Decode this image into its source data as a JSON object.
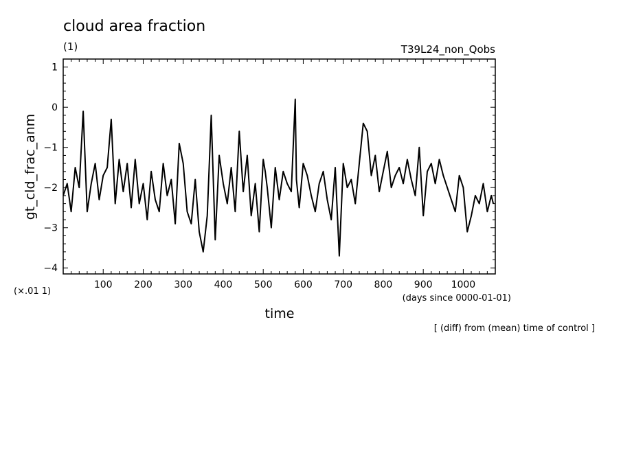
{
  "chart_data": {
    "type": "line",
    "title": "cloud area fraction",
    "subtitle_left": "(1)",
    "subtitle_right": "T39L24_non_Qobs",
    "ylabel": "gt_cld_frac_anm",
    "xlabel": "time",
    "xunits": "(days since 0000-01-01)",
    "yscale_note": "(×.01 1)",
    "footnote": "[ (diff) from (mean) time of control ]",
    "xlim": [
      0,
      1080
    ],
    "ylim": [
      -4.15,
      1.2
    ],
    "xticks": [
      100,
      200,
      300,
      400,
      500,
      600,
      700,
      800,
      900,
      1000
    ],
    "yticks": [
      1,
      0,
      -1,
      -2,
      -3,
      -4
    ],
    "grid": false,
    "series": [
      {
        "color": "#000000",
        "x": [
          0,
          10,
          20,
          30,
          40,
          50,
          60,
          70,
          80,
          90,
          100,
          110,
          120,
          130,
          140,
          150,
          160,
          170,
          180,
          190,
          200,
          210,
          220,
          230,
          240,
          250,
          260,
          270,
          280,
          290,
          300,
          310,
          320,
          330,
          340,
          350,
          360,
          370,
          380,
          390,
          400,
          410,
          420,
          430,
          440,
          450,
          460,
          470,
          480,
          490,
          500,
          505,
          510,
          520,
          530,
          540,
          550,
          560,
          570,
          580,
          583,
          590,
          600,
          610,
          620,
          630,
          640,
          650,
          660,
          670,
          680,
          690,
          700,
          710,
          720,
          730,
          740,
          750,
          760,
          770,
          780,
          790,
          800,
          810,
          820,
          830,
          840,
          850,
          860,
          870,
          880,
          890,
          900,
          910,
          920,
          930,
          940,
          950,
          960,
          970,
          980,
          990,
          1000,
          1010,
          1020,
          1030,
          1040,
          1050,
          1060,
          1070,
          1075
        ],
        "y": [
          -2.2,
          -1.9,
          -2.6,
          -1.5,
          -2.0,
          -0.1,
          -2.6,
          -1.9,
          -1.4,
          -2.3,
          -1.7,
          -1.5,
          -0.3,
          -2.4,
          -1.3,
          -2.1,
          -1.4,
          -2.5,
          -1.3,
          -2.4,
          -1.9,
          -2.8,
          -1.6,
          -2.3,
          -2.6,
          -1.4,
          -2.2,
          -1.8,
          -2.9,
          -0.9,
          -1.4,
          -2.6,
          -2.9,
          -1.8,
          -3.1,
          -3.6,
          -2.7,
          -0.2,
          -3.3,
          -1.2,
          -1.9,
          -2.4,
          -1.5,
          -2.6,
          -0.6,
          -2.1,
          -1.2,
          -2.7,
          -1.9,
          -3.1,
          -1.3,
          -1.6,
          -2.0,
          -3.0,
          -1.5,
          -2.3,
          -1.6,
          -1.9,
          -2.1,
          0.2,
          -1.8,
          -2.5,
          -1.4,
          -1.7,
          -2.2,
          -2.6,
          -1.9,
          -1.6,
          -2.3,
          -2.8,
          -1.5,
          -3.7,
          -1.4,
          -2.0,
          -1.8,
          -2.4,
          -1.4,
          -0.4,
          -0.6,
          -1.7,
          -1.2,
          -2.1,
          -1.6,
          -1.1,
          -2.0,
          -1.7,
          -1.5,
          -1.9,
          -1.3,
          -1.8,
          -2.2,
          -1.0,
          -2.7,
          -1.6,
          -1.4,
          -1.9,
          -1.3,
          -1.7,
          -2.0,
          -2.3,
          -2.6,
          -1.7,
          -2.0,
          -3.1,
          -2.7,
          -2.2,
          -2.4,
          -1.9,
          -2.6,
          -2.2,
          -2.4
        ]
      }
    ]
  }
}
